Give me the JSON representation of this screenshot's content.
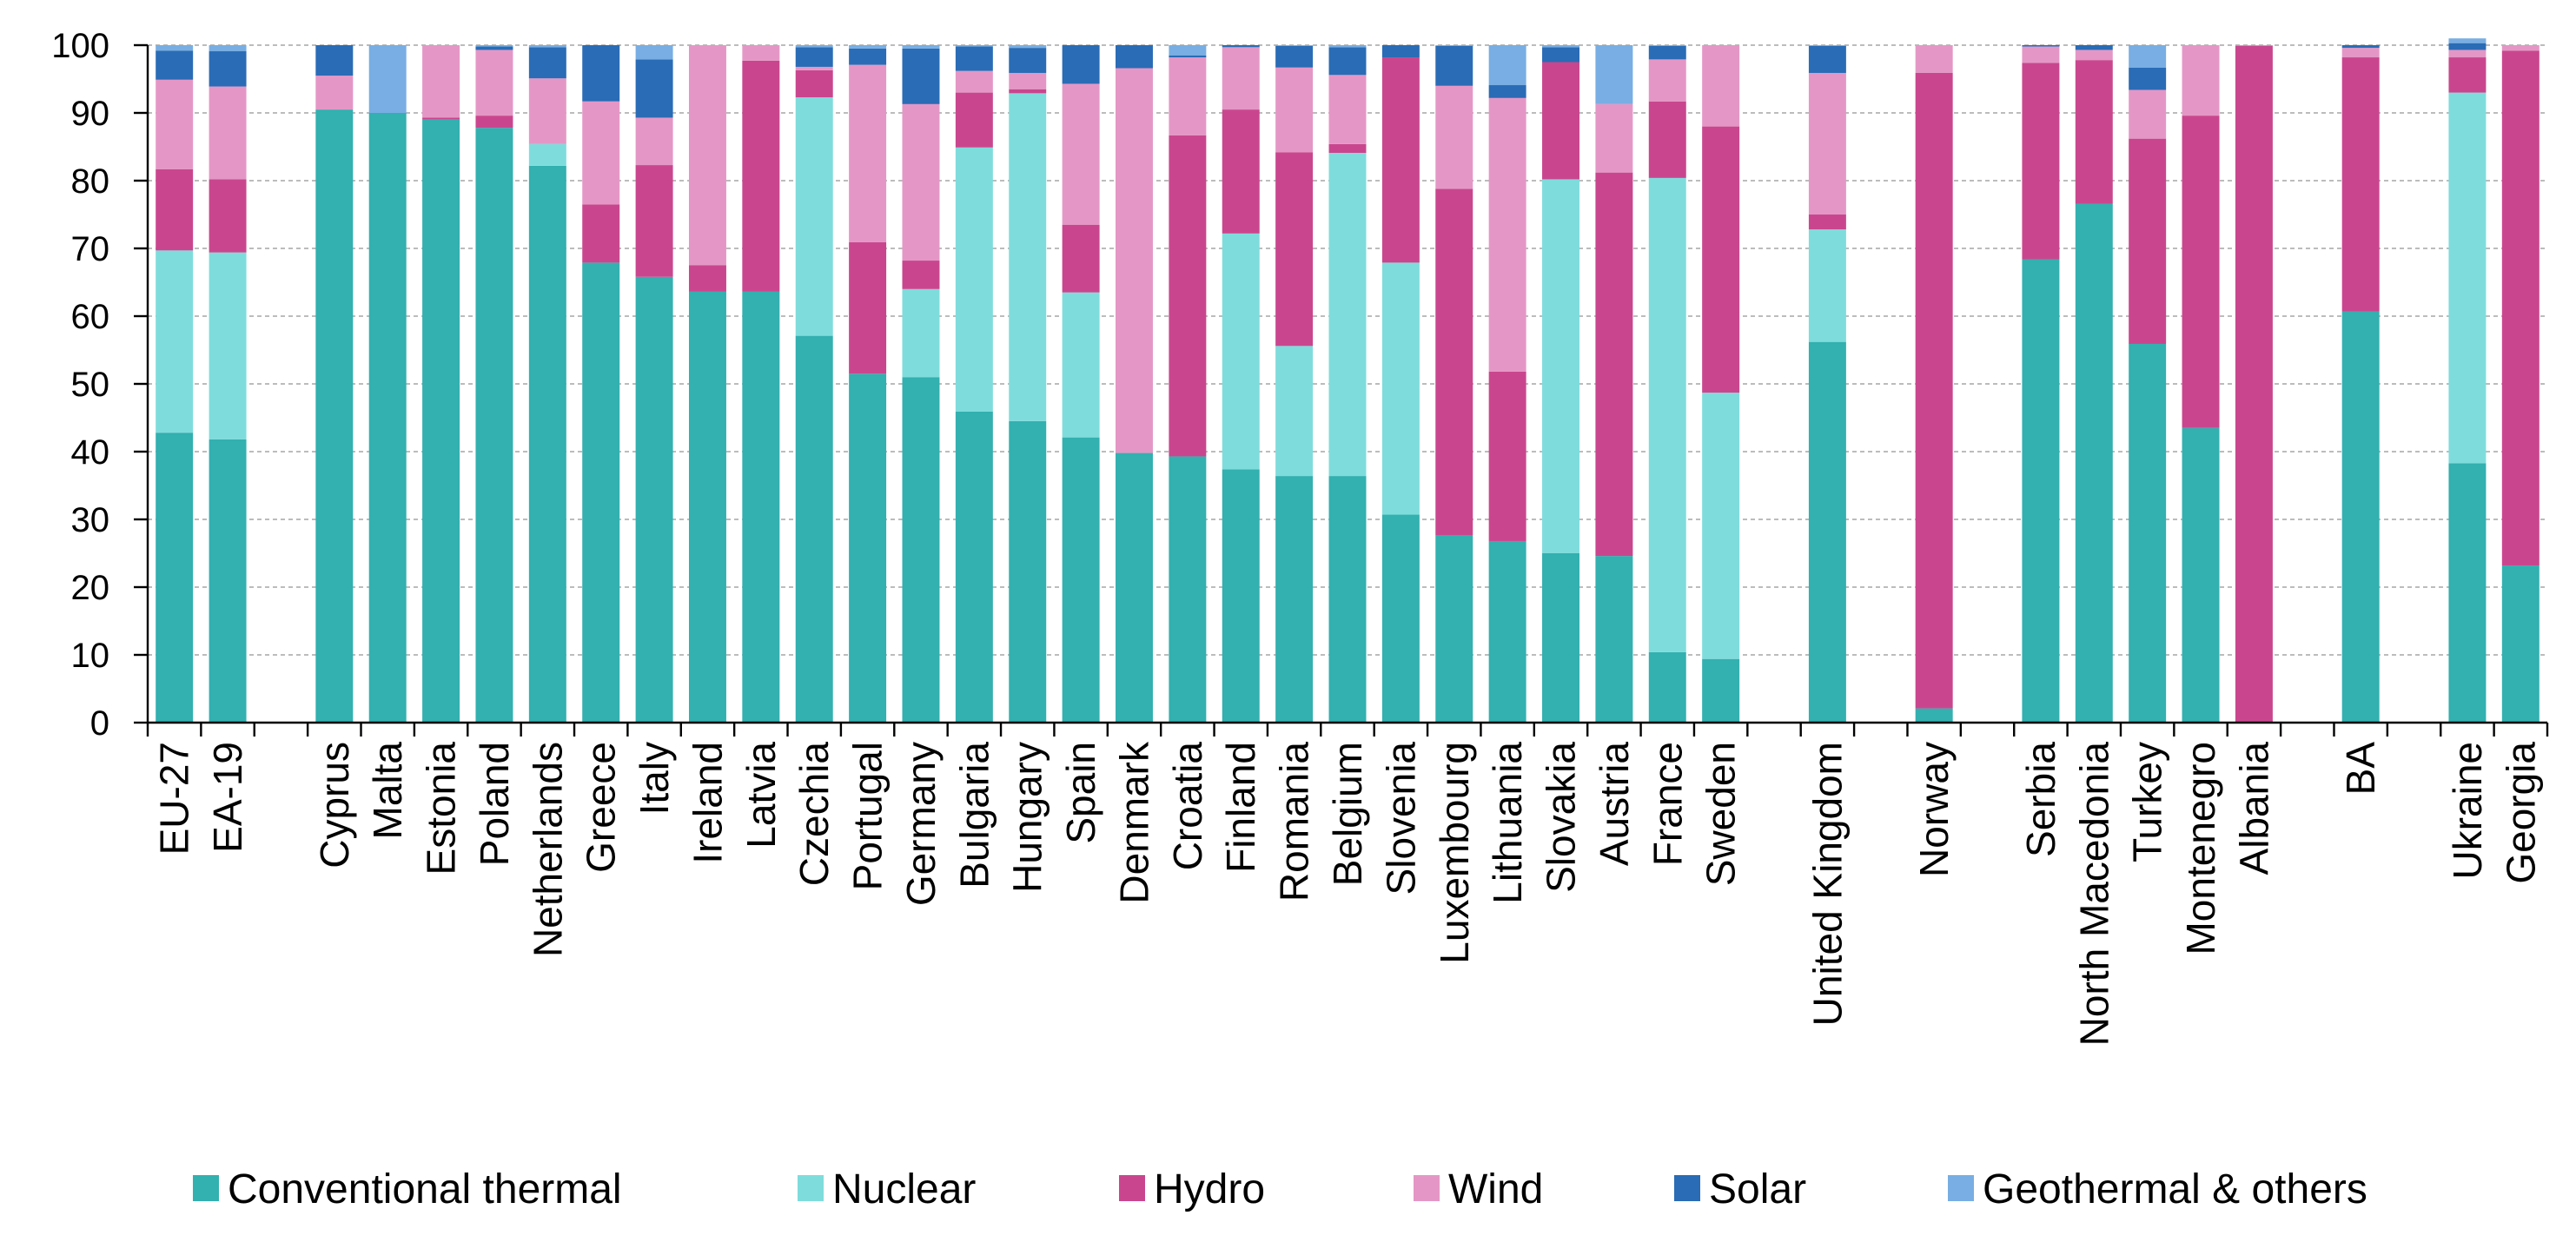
{
  "chart_data": {
    "type": "bar",
    "stacked": true,
    "title": "",
    "xlabel": "",
    "ylabel": "",
    "ylim": [
      0,
      100
    ],
    "yticks": [
      0,
      10,
      20,
      30,
      40,
      50,
      60,
      70,
      80,
      90,
      100
    ],
    "grid": true,
    "legend_position": "bottom",
    "categories": [
      "EU-27",
      "EA-19",
      "",
      "Cyprus",
      "Malta",
      "Estonia",
      "Poland",
      "Netherlands",
      "Greece",
      "Italy",
      "Ireland",
      "Latvia",
      "Czechia",
      "Portugal",
      "Germany",
      "Bulgaria",
      "Hungary",
      "Spain",
      "Denmark",
      "Croatia",
      "Finland",
      "Romania",
      "Belgium",
      "Slovenia",
      "Luxembourg",
      "Lithuania",
      "Slovakia",
      "Austria",
      "France",
      "Sweden",
      "",
      "United Kingdom",
      "",
      "Norway",
      "",
      "Serbia",
      "North Macedonia",
      "Turkey",
      "Montenegro",
      "Albania",
      "",
      "BA",
      "",
      "Ukraine",
      "Georgia"
    ],
    "series": [
      {
        "name": "Conventional thermal",
        "color": "#33b0b0",
        "values": [
          42.8,
          41.8,
          0,
          90.5,
          90.0,
          89.0,
          87.8,
          82.2,
          67.9,
          65.8,
          63.6,
          63.6,
          57.1,
          51.5,
          51.0,
          45.9,
          44.5,
          42.1,
          39.8,
          39.3,
          37.4,
          36.4,
          36.4,
          30.7,
          27.6,
          26.8,
          25.0,
          24.6,
          10.4,
          9.4,
          0,
          56.2,
          0,
          2.1,
          0,
          68.4,
          76.6,
          55.9,
          43.5,
          0,
          0,
          60.7,
          0,
          38.3,
          23.2
        ]
      },
      {
        "name": "Nuclear",
        "color": "#7fdcdc",
        "values": [
          26.9,
          27.6,
          0,
          0,
          0,
          0,
          0,
          3.2,
          0,
          0,
          0,
          0,
          35.2,
          0,
          13.0,
          39.0,
          48.4,
          21.4,
          0,
          0,
          34.8,
          19.2,
          47.7,
          37.2,
          0,
          0,
          55.2,
          0,
          70.0,
          39.3,
          0,
          16.6,
          0,
          0,
          0,
          0,
          0,
          0,
          0,
          0,
          0,
          0,
          0,
          54.7,
          0
        ]
      },
      {
        "name": "Hydro",
        "color": "#c9468e",
        "values": [
          12.0,
          10.8,
          0,
          0,
          0,
          0.3,
          1.8,
          0,
          8.6,
          16.5,
          3.9,
          34.1,
          4.0,
          19.4,
          4.2,
          8.1,
          0.6,
          10.0,
          0,
          47.4,
          18.3,
          28.6,
          1.3,
          30.3,
          51.2,
          25.0,
          17.3,
          56.6,
          11.3,
          39.3,
          0,
          2.2,
          0,
          93.8,
          0,
          29.0,
          21.2,
          30.3,
          46.1,
          99.9,
          0,
          37.5,
          0,
          5.2,
          76.0
        ]
      },
      {
        "name": "Wind",
        "color": "#e497c6",
        "values": [
          13.2,
          13.7,
          0,
          5.0,
          0,
          10.7,
          9.7,
          9.7,
          15.2,
          7.0,
          32.5,
          2.3,
          0.5,
          26.2,
          23.1,
          3.2,
          2.4,
          20.8,
          56.8,
          11.5,
          9.2,
          12.5,
          10.2,
          0,
          15.2,
          40.4,
          0,
          10.1,
          6.2,
          12.0,
          0,
          20.9,
          0,
          4.1,
          0,
          2.4,
          1.5,
          7.2,
          10.4,
          0,
          0,
          1.4,
          0,
          1.1,
          0.8
        ]
      },
      {
        "name": "Solar",
        "color": "#2a6cb5",
        "values": [
          4.3,
          5.2,
          0,
          4.5,
          0,
          0,
          0.5,
          4.6,
          8.3,
          8.6,
          0,
          0,
          2.9,
          2.4,
          8.2,
          3.6,
          3.7,
          5.7,
          3.4,
          0.3,
          0.3,
          3.2,
          4.1,
          1.8,
          5.9,
          1.9,
          2.2,
          0,
          2.0,
          0,
          0,
          4.0,
          0,
          0,
          0,
          0.2,
          0.7,
          3.3,
          0,
          0,
          0,
          0.4,
          0,
          1.0,
          0
        ]
      },
      {
        "name": "Geothermal & others",
        "color": "#78aee3",
        "values": [
          0.8,
          0.9,
          0,
          0,
          10.0,
          0,
          0.2,
          0.3,
          0,
          2.1,
          0,
          0,
          0.3,
          0.5,
          0.5,
          0.2,
          0.4,
          0,
          0,
          1.5,
          0,
          0.1,
          0.3,
          0,
          0.1,
          5.9,
          0.3,
          8.7,
          0.1,
          0,
          0,
          0.1,
          0,
          0,
          0,
          0,
          0,
          3.3,
          0,
          0.1,
          0,
          0,
          0,
          0.7,
          0
        ]
      }
    ]
  }
}
